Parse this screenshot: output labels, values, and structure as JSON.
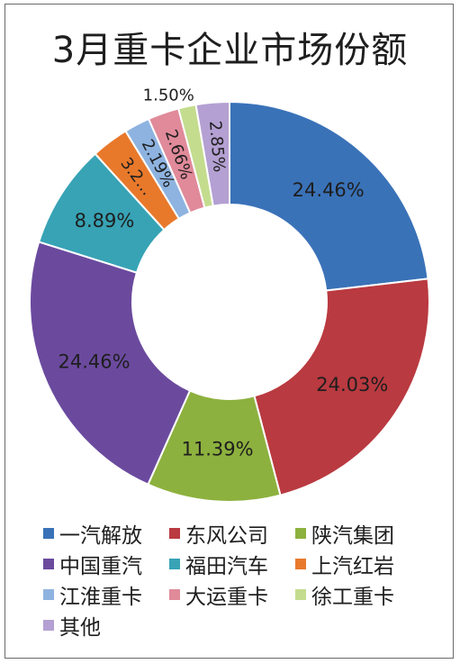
{
  "chart_data": {
    "type": "pie",
    "title": "3月重卡企业市场份额",
    "donut": true,
    "legend_position": "bottom",
    "series": [
      {
        "name": "一汽解放",
        "value": 24.46,
        "label": "24.46%",
        "color": "#3a72b8"
      },
      {
        "name": "东风公司",
        "value": 24.03,
        "label": "24.03%",
        "color": "#b93a40"
      },
      {
        "name": "陕汽集团",
        "value": 11.39,
        "label": "11.39%",
        "color": "#8db13e"
      },
      {
        "name": "中国重汽",
        "value": 24.46,
        "label": "24.46%",
        "color": "#6b4a9e"
      },
      {
        "name": "福田汽车",
        "value": 8.89,
        "label": "8.89%",
        "color": "#37a3b5"
      },
      {
        "name": "上汽红岩",
        "value": 3.2,
        "label": "3.2…",
        "color": "#e8792b"
      },
      {
        "name": "江淮重卡",
        "value": 2.19,
        "label": "2.19%",
        "color": "#8eb3e0"
      },
      {
        "name": "大运重卡",
        "value": 2.66,
        "label": "2.66%",
        "color": "#e08a9a"
      },
      {
        "name": "徐工重卡",
        "value": 1.5,
        "label": "1.50%",
        "color": "#c4dc8e"
      },
      {
        "name": "其他",
        "value": 2.85,
        "label": "2.85%",
        "color": "#b4a0d2"
      }
    ]
  }
}
